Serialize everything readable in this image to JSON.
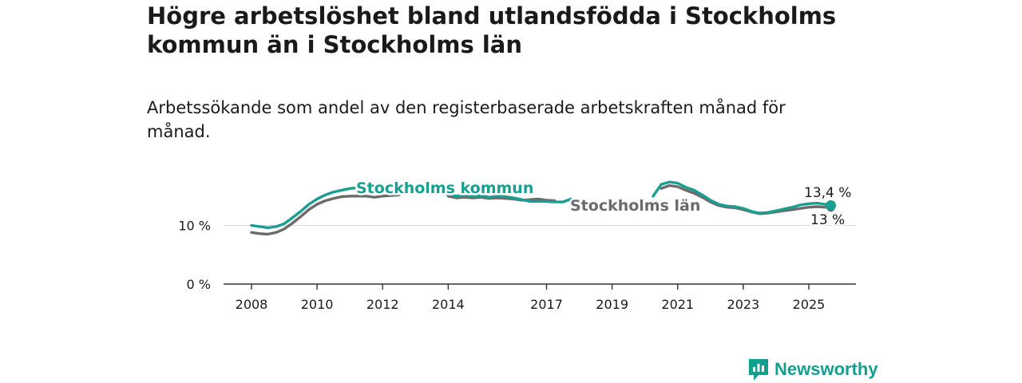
{
  "title": "Högre arbetslöshet bland utlandsfödda i Stockholms kommun än i Stockholms län",
  "subtitle": "Arbetssökande som andel av den registerbaserade arbetskraften månad för månad.",
  "brand": "Newsworthy",
  "colors": {
    "kommun": "#1a9e8f",
    "lan": "#6e6a6c",
    "grid": "#d8d8d8",
    "axis": "#333333"
  },
  "chart_data": {
    "type": "line",
    "ylim": [
      0,
      20
    ],
    "yticks": [
      {
        "value": 0,
        "label": "0 %"
      },
      {
        "value": 10,
        "label": "10 %"
      }
    ],
    "xticks": [
      "2008",
      "2010",
      "2012",
      "2014",
      "2017",
      "2019",
      "2021",
      "2023",
      "2025"
    ],
    "series": [
      {
        "name": "Stockholms kommun",
        "end_label": "13,4 %",
        "points": [
          [
            2008.0,
            10.0
          ],
          [
            2008.25,
            9.8
          ],
          [
            2008.5,
            9.6
          ],
          [
            2008.75,
            9.8
          ],
          [
            2009.0,
            10.3
          ],
          [
            2009.25,
            11.3
          ],
          [
            2009.5,
            12.4
          ],
          [
            2009.75,
            13.6
          ],
          [
            2010.0,
            14.5
          ],
          [
            2010.25,
            15.2
          ],
          [
            2010.5,
            15.7
          ],
          [
            2010.75,
            16.0
          ],
          [
            2011.0,
            16.3
          ],
          [
            2011.25,
            16.4
          ],
          [
            2011.5,
            16.6
          ]
        ],
        "segments_extra": [
          [
            [
              2013.75,
              15.5
            ],
            [
              2014.0,
              15.3
            ],
            [
              2014.25,
              15.0
            ],
            [
              2014.5,
              15.2
            ],
            [
              2014.75,
              15.0
            ],
            [
              2015.0,
              15.1
            ],
            [
              2015.25,
              14.8
            ],
            [
              2015.5,
              15.0
            ],
            [
              2015.75,
              14.9
            ],
            [
              2016.0,
              14.7
            ],
            [
              2016.25,
              14.4
            ],
            [
              2016.5,
              14.1
            ],
            [
              2016.75,
              14.1
            ],
            [
              2017.0,
              14.1
            ],
            [
              2017.25,
              14.0
            ],
            [
              2017.5,
              14.0
            ],
            [
              2017.75,
              14.5
            ]
          ],
          [
            [
              2020.25,
              15.0
            ],
            [
              2020.5,
              17.0
            ],
            [
              2020.75,
              17.4
            ],
            [
              2021.0,
              17.2
            ],
            [
              2021.25,
              16.5
            ],
            [
              2021.5,
              16.0
            ],
            [
              2021.75,
              15.2
            ],
            [
              2022.0,
              14.3
            ],
            [
              2022.25,
              13.6
            ],
            [
              2022.5,
              13.3
            ],
            [
              2022.75,
              13.2
            ],
            [
              2023.0,
              12.9
            ],
            [
              2023.25,
              12.4
            ],
            [
              2023.5,
              12.1
            ],
            [
              2023.75,
              12.2
            ],
            [
              2024.0,
              12.5
            ],
            [
              2024.25,
              12.8
            ],
            [
              2024.5,
              13.1
            ],
            [
              2024.75,
              13.5
            ],
            [
              2025.0,
              13.7
            ],
            [
              2025.25,
              13.8
            ],
            [
              2025.5,
              13.6
            ],
            [
              2025.67,
              13.4
            ]
          ]
        ]
      },
      {
        "name": "Stockholms län",
        "end_label": "13 %",
        "points": [
          [
            2008.0,
            8.8
          ],
          [
            2008.25,
            8.6
          ],
          [
            2008.5,
            8.5
          ],
          [
            2008.75,
            8.8
          ],
          [
            2009.0,
            9.4
          ],
          [
            2009.25,
            10.4
          ],
          [
            2009.5,
            11.5
          ],
          [
            2009.75,
            12.7
          ],
          [
            2010.0,
            13.6
          ],
          [
            2010.25,
            14.2
          ],
          [
            2010.5,
            14.6
          ],
          [
            2010.75,
            14.9
          ],
          [
            2011.0,
            15.0
          ],
          [
            2011.25,
            15.0
          ],
          [
            2011.5,
            15.0
          ],
          [
            2011.75,
            14.8
          ],
          [
            2012.0,
            15.0
          ],
          [
            2012.25,
            15.1
          ],
          [
            2012.5,
            15.2
          ]
        ],
        "segments_extra": [
          [
            [
              2014.0,
              15.0
            ],
            [
              2014.25,
              14.7
            ],
            [
              2014.5,
              14.8
            ],
            [
              2014.75,
              14.7
            ],
            [
              2015.0,
              14.8
            ],
            [
              2015.25,
              14.6
            ],
            [
              2015.5,
              14.7
            ],
            [
              2015.75,
              14.6
            ],
            [
              2016.0,
              14.5
            ],
            [
              2016.25,
              14.3
            ],
            [
              2016.5,
              14.4
            ],
            [
              2016.75,
              14.5
            ],
            [
              2017.0,
              14.3
            ],
            [
              2017.25,
              14.2
            ]
          ],
          [
            [
              2020.5,
              16.3
            ],
            [
              2020.75,
              16.8
            ],
            [
              2021.0,
              16.6
            ],
            [
              2021.25,
              16.0
            ],
            [
              2021.5,
              15.5
            ],
            [
              2021.75,
              14.8
            ],
            [
              2022.0,
              14.0
            ],
            [
              2022.25,
              13.4
            ],
            [
              2022.5,
              13.1
            ],
            [
              2022.75,
              13.0
            ],
            [
              2023.0,
              12.7
            ],
            [
              2023.25,
              12.3
            ],
            [
              2023.5,
              12.0
            ],
            [
              2023.75,
              12.1
            ],
            [
              2024.0,
              12.3
            ],
            [
              2024.25,
              12.5
            ],
            [
              2024.5,
              12.7
            ],
            [
              2024.75,
              12.9
            ],
            [
              2025.0,
              13.1
            ],
            [
              2025.25,
              13.2
            ],
            [
              2025.5,
              13.1
            ],
            [
              2025.67,
              13.0
            ]
          ]
        ]
      }
    ]
  }
}
